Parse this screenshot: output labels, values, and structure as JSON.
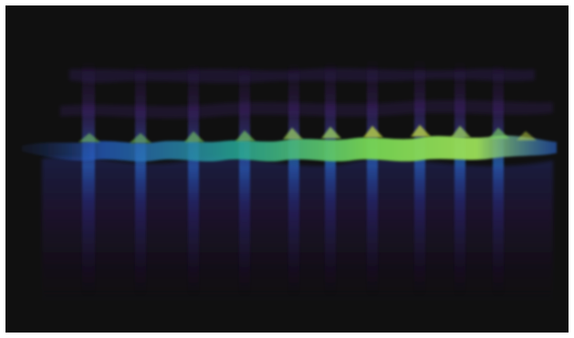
{
  "image": {
    "subject": "spectrogram-waterfall",
    "background_color": "#121212",
    "frame_color": "#ffffff",
    "palette": [
      "#2a0a3a",
      "#3b1a7a",
      "#2f5bd6",
      "#22b3a8",
      "#7fe45a",
      "#d6f04a"
    ]
  }
}
